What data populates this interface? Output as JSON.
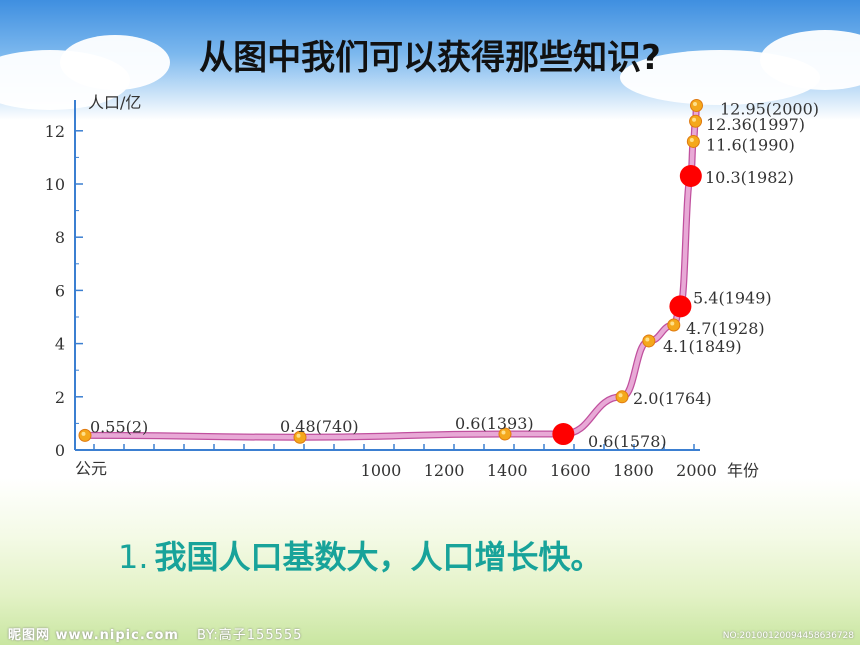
{
  "title": "从图中我们可以获得那些知识?",
  "conclusion": {
    "number": "1.",
    "text": "我国人口基数大，人口增长快。"
  },
  "watermark_left": {
    "logo": "昵图网 www.nipic.com",
    "author": "BY:高子155555"
  },
  "watermark_right": "NO:20100120094458636728",
  "colors": {
    "curve": "#e8a9d6",
    "curve_edge": "#c0509e",
    "marker": "#f4a81c",
    "highlight": "#ff0000",
    "axis": "#3b7fd1",
    "conclusion": "#18a39a"
  },
  "chart_data": {
    "type": "line",
    "title": "",
    "ylabel": "人口/亿",
    "xlabel": "年份",
    "x_origin_label": "公元",
    "ylim": [
      0,
      13
    ],
    "y_ticks": [
      0,
      2,
      4,
      6,
      8,
      10,
      12
    ],
    "x_ticks": [
      1000,
      1200,
      1400,
      1600,
      1800,
      2000
    ],
    "series": [
      {
        "points": [
          {
            "year": 2,
            "value": 0.55,
            "label": "0.55(2)"
          },
          {
            "year": 740,
            "value": 0.48,
            "label": "0.48(740)"
          },
          {
            "year": 1393,
            "value": 0.6,
            "label": "0.6(1393)"
          },
          {
            "year": 1578,
            "value": 0.6,
            "label": "0.6(1578)"
          },
          {
            "year": 1764,
            "value": 2.0,
            "label": "2.0(1764)"
          },
          {
            "year": 1849,
            "value": 4.1,
            "label": "4.1(1849)"
          },
          {
            "year": 1928,
            "value": 4.7,
            "label": "4.7(1928)"
          },
          {
            "year": 1949,
            "value": 5.4,
            "label": "5.4(1949)"
          },
          {
            "year": 1982,
            "value": 10.3,
            "label": "10.3(1982)"
          },
          {
            "year": 1990,
            "value": 11.6,
            "label": "11.6(1990)"
          },
          {
            "year": 1997,
            "value": 12.36,
            "label": "12.36(1997)"
          },
          {
            "year": 2000,
            "value": 12.95,
            "label": "12.95(2000)"
          }
        ]
      }
    ],
    "highlighted_years": [
      1578,
      1949,
      1982
    ]
  }
}
